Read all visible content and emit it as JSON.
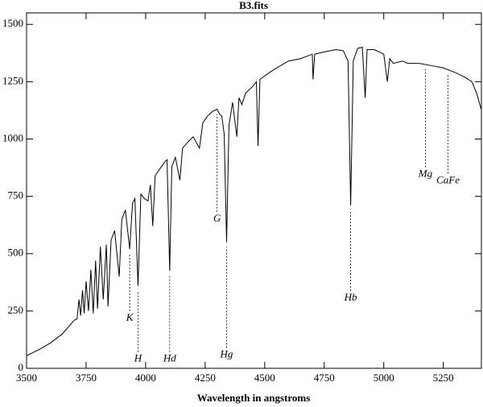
{
  "chart_data": {
    "type": "line",
    "title": "B3.fits",
    "x_label": "Wavelength in angstroms",
    "x": [
      3500,
      3550,
      3600,
      3650,
      3680,
      3700,
      3712,
      3720,
      3727,
      3735,
      3742,
      3750,
      3760,
      3770,
      3780,
      3790,
      3798,
      3810,
      3822,
      3835,
      3842,
      3855,
      3870,
      3889,
      3900,
      3915,
      3933,
      3945,
      3955,
      3968,
      3980,
      3995,
      4010,
      4020,
      4030,
      4040,
      4060,
      4080,
      4090,
      4101,
      4110,
      4125,
      4144,
      4155,
      4180,
      4200,
      4226,
      4240,
      4260,
      4280,
      4300,
      4310,
      4320,
      4330,
      4340,
      4350,
      4365,
      4383,
      4392,
      4404,
      4420,
      4450,
      4465,
      4472,
      4480,
      4520,
      4550,
      4600,
      4650,
      4700,
      4703,
      4710,
      4750,
      4800,
      4830,
      4850,
      4861,
      4872,
      4890,
      4910,
      4922,
      4930,
      4960,
      5000,
      5015,
      5025,
      5040,
      5080,
      5100,
      5150,
      5200,
      5250,
      5300,
      5340,
      5370,
      5390,
      5409
    ],
    "values": [
      55,
      80,
      110,
      150,
      185,
      210,
      215,
      300,
      230,
      340,
      240,
      380,
      250,
      430,
      240,
      470,
      260,
      530,
      300,
      540,
      270,
      560,
      600,
      400,
      650,
      690,
      520,
      720,
      740,
      360,
      760,
      740,
      730,
      800,
      620,
      840,
      870,
      900,
      910,
      425,
      880,
      920,
      820,
      960,
      990,
      1010,
      960,
      1070,
      1100,
      1120,
      1130,
      1110,
      1100,
      1020,
      550,
      1060,
      1160,
      1010,
      1180,
      1150,
      1200,
      1230,
      1250,
      970,
      1260,
      1290,
      1310,
      1340,
      1350,
      1370,
      1260,
      1370,
      1380,
      1390,
      1385,
      1340,
      711,
      1340,
      1395,
      1400,
      1180,
      1390,
      1390,
      1370,
      1250,
      1350,
      1330,
      1340,
      1330,
      1330,
      1320,
      1310,
      1290,
      1270,
      1250,
      1200,
      1130
    ],
    "color": "#000000",
    "xlim": [
      3500,
      5410
    ],
    "ylim": [
      0,
      1550
    ],
    "xticks": [
      3500,
      3750,
      4000,
      4250,
      4500,
      4750,
      5000,
      5250
    ],
    "yticks": [
      0,
      250,
      500,
      750,
      1000,
      1250,
      1500
    ],
    "annotations": [
      {
        "text": "K",
        "x": 3933,
        "y": 218
      },
      {
        "text": "H",
        "x": 3968,
        "y": 40
      },
      {
        "text": "Hd",
        "x": 4101,
        "y": 40
      },
      {
        "text": "G",
        "x": 4300,
        "y": 651
      },
      {
        "text": "Hg",
        "x": 4340,
        "y": 58
      },
      {
        "text": "Hb",
        "x": 4861,
        "y": 306
      },
      {
        "text": "Mg",
        "x": 5175,
        "y": 845
      },
      {
        "text": "CaFe",
        "x": 5270,
        "y": 818
      }
    ]
  }
}
